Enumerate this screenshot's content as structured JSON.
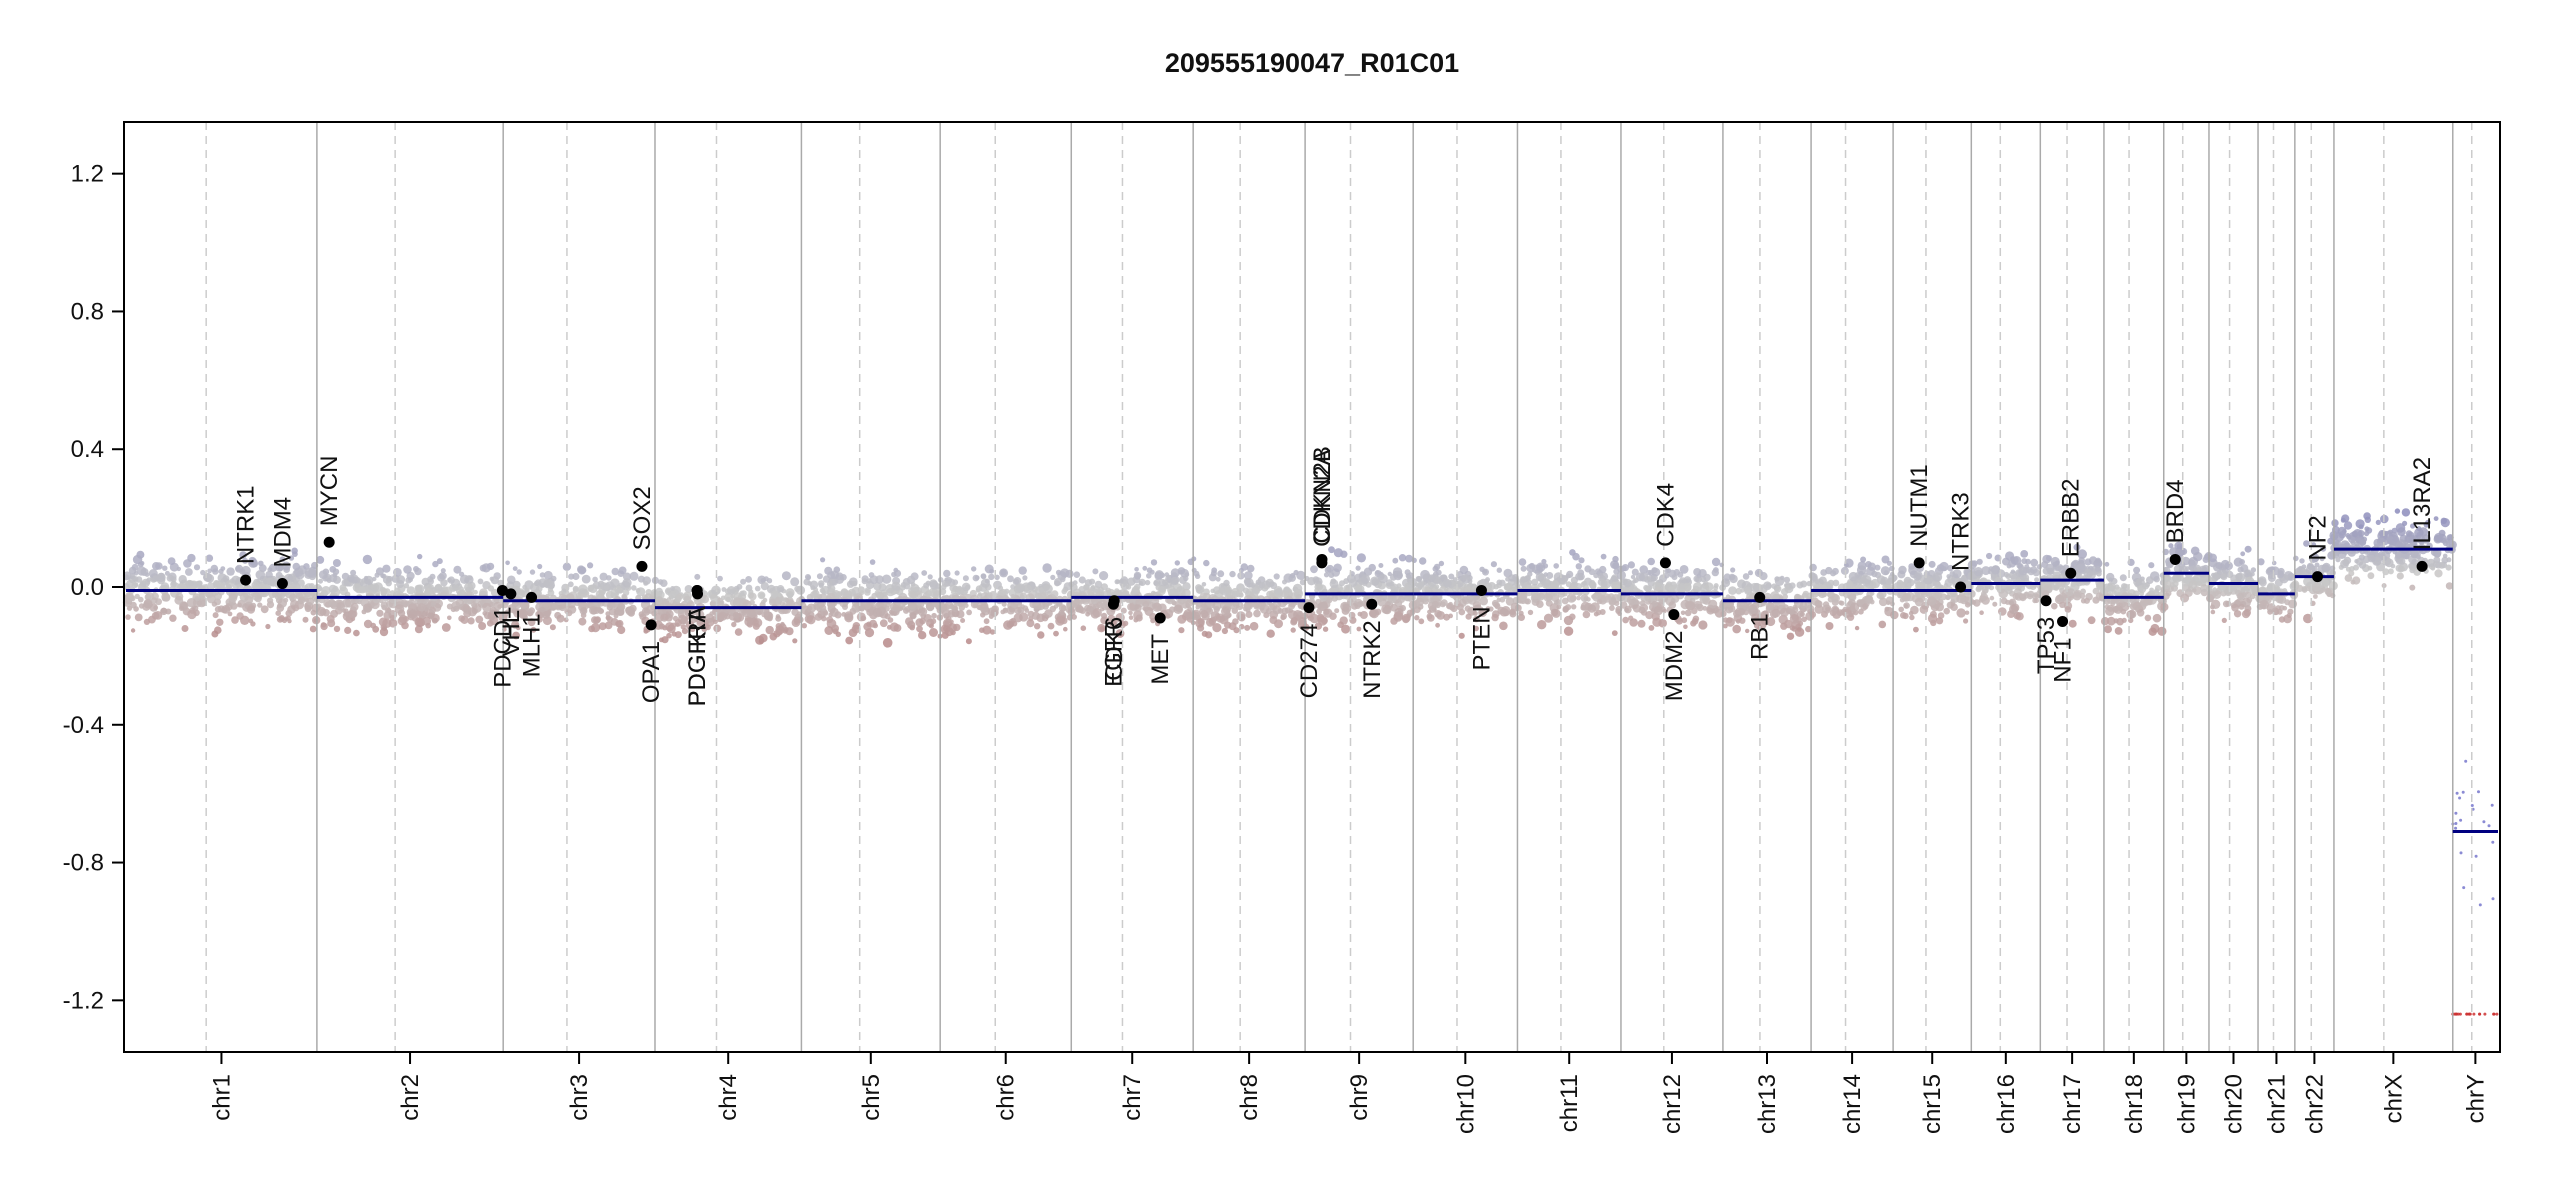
{
  "chart_data": {
    "type": "scatter",
    "title": "209555190047_R01C01",
    "xlabel": "",
    "ylabel": "",
    "ylim": [
      -1.35,
      1.35
    ],
    "y_ticks": [
      "1.2",
      "0.8",
      "0.4",
      "0.0",
      "-0.4",
      "-0.8",
      "-1.2"
    ],
    "y_tick_values": [
      1.2,
      0.8,
      0.4,
      0.0,
      -0.4,
      -0.8,
      -1.2
    ],
    "chromosomes": [
      {
        "name": "chr1",
        "length": 249
      },
      {
        "name": "chr2",
        "length": 243
      },
      {
        "name": "chr3",
        "length": 198
      },
      {
        "name": "chr4",
        "length": 191
      },
      {
        "name": "chr5",
        "length": 181
      },
      {
        "name": "chr6",
        "length": 171
      },
      {
        "name": "chr7",
        "length": 159
      },
      {
        "name": "chr8",
        "length": 146
      },
      {
        "name": "chr9",
        "length": 141
      },
      {
        "name": "chr10",
        "length": 136
      },
      {
        "name": "chr11",
        "length": 135
      },
      {
        "name": "chr12",
        "length": 133
      },
      {
        "name": "chr13",
        "length": 115
      },
      {
        "name": "chr14",
        "length": 107
      },
      {
        "name": "chr15",
        "length": 102
      },
      {
        "name": "chr16",
        "length": 90
      },
      {
        "name": "chr17",
        "length": 83
      },
      {
        "name": "chr18",
        "length": 78
      },
      {
        "name": "chr19",
        "length": 59
      },
      {
        "name": "chr20",
        "length": 64
      },
      {
        "name": "chr21",
        "length": 48
      },
      {
        "name": "chr22",
        "length": 51
      },
      {
        "name": "chrX",
        "length": 155
      },
      {
        "name": "chrY",
        "length": 59
      }
    ],
    "segments": [
      {
        "chr": "chr1",
        "start": 0,
        "end": 249,
        "value": -0.01
      },
      {
        "chr": "chr2",
        "start": 0,
        "end": 243,
        "value": -0.03
      },
      {
        "chr": "chr3",
        "start": 0,
        "end": 198,
        "value": -0.04
      },
      {
        "chr": "chr4",
        "start": 0,
        "end": 191,
        "value": -0.06
      },
      {
        "chr": "chr5",
        "start": 0,
        "end": 181,
        "value": -0.04
      },
      {
        "chr": "chr6",
        "start": 0,
        "end": 171,
        "value": -0.04
      },
      {
        "chr": "chr7",
        "start": 0,
        "end": 159,
        "value": -0.03
      },
      {
        "chr": "chr8",
        "start": 0,
        "end": 146,
        "value": -0.04
      },
      {
        "chr": "chr9",
        "start": 0,
        "end": 141,
        "value": -0.02
      },
      {
        "chr": "chr10",
        "start": 0,
        "end": 136,
        "value": -0.02
      },
      {
        "chr": "chr11",
        "start": 0,
        "end": 135,
        "value": -0.01
      },
      {
        "chr": "chr12",
        "start": 0,
        "end": 133,
        "value": -0.02
      },
      {
        "chr": "chr13",
        "start": 0,
        "end": 115,
        "value": -0.04
      },
      {
        "chr": "chr14",
        "start": 0,
        "end": 107,
        "value": -0.01
      },
      {
        "chr": "chr15",
        "start": 0,
        "end": 102,
        "value": -0.01
      },
      {
        "chr": "chr16",
        "start": 0,
        "end": 90,
        "value": 0.01
      },
      {
        "chr": "chr17",
        "start": 0,
        "end": 83,
        "value": 0.02
      },
      {
        "chr": "chr18",
        "start": 0,
        "end": 78,
        "value": -0.03
      },
      {
        "chr": "chr19",
        "start": 0,
        "end": 59,
        "value": 0.04
      },
      {
        "chr": "chr20",
        "start": 0,
        "end": 64,
        "value": 0.01
      },
      {
        "chr": "chr21",
        "start": 0,
        "end": 48,
        "value": -0.02
      },
      {
        "chr": "chr22",
        "start": 0,
        "end": 51,
        "value": 0.03
      },
      {
        "chr": "chrX",
        "start": 0,
        "end": 155,
        "value": 0.11
      },
      {
        "chr": "chrY",
        "start": 0,
        "end": 59,
        "value": -0.71
      }
    ],
    "genes": [
      {
        "name": "NTRK1",
        "chr": "chr1",
        "pos": 156,
        "value": 0.02,
        "label_side": "above"
      },
      {
        "name": "MDM4",
        "chr": "chr1",
        "pos": 204,
        "value": 0.01,
        "label_side": "above"
      },
      {
        "name": "MYCN",
        "chr": "chr2",
        "pos": 16,
        "value": 0.13,
        "label_side": "above"
      },
      {
        "name": "PDGFRA",
        "chr": "chr4",
        "pos": 55,
        "value": -0.01,
        "label_side": "below"
      },
      {
        "name": "PDCD1",
        "chr": "chr2",
        "pos": 242,
        "value": -0.01,
        "label_side": "below"
      },
      {
        "name": "VHL",
        "chr": "chr3",
        "pos": 10,
        "value": -0.02,
        "label_side": "below"
      },
      {
        "name": "MLH1",
        "chr": "chr3",
        "pos": 37,
        "value": -0.03,
        "label_side": "below"
      },
      {
        "name": "SOX2",
        "chr": "chr3",
        "pos": 181,
        "value": 0.06,
        "label_side": "above"
      },
      {
        "name": "OPA1",
        "chr": "chr3",
        "pos": 193,
        "value": -0.11,
        "label_side": "below"
      },
      {
        "name": "KIT",
        "chr": "chr4",
        "pos": 55.5,
        "value": -0.02,
        "label_side": "below"
      },
      {
        "name": "PDGFRA",
        "chr": "chr4",
        "pos": 55,
        "value": -0.01,
        "label_side": "below"
      },
      {
        "name": "EGFR",
        "chr": "chr7",
        "pos": 55,
        "value": -0.05,
        "label_side": "below"
      },
      {
        "name": "CDK6",
        "chr": "chr7",
        "pos": 56,
        "value": -0.04,
        "label_side": "below"
      },
      {
        "name": "MET",
        "chr": "chr7",
        "pos": 116,
        "value": -0.09,
        "label_side": "below"
      },
      {
        "name": "CD274",
        "chr": "chr9",
        "pos": 5,
        "value": -0.06,
        "label_side": "below"
      },
      {
        "name": "CDKN2A",
        "chr": "chr9",
        "pos": 21.9,
        "value": 0.07,
        "label_side": "above"
      },
      {
        "name": "CDKN2B",
        "chr": "chr9",
        "pos": 22,
        "value": 0.08,
        "label_side": "above"
      },
      {
        "name": "NTRK2",
        "chr": "chr9",
        "pos": 87,
        "value": -0.05,
        "label_side": "below"
      },
      {
        "name": "PTEN",
        "chr": "chr10",
        "pos": 89,
        "value": -0.01,
        "label_side": "below"
      },
      {
        "name": "CDK4",
        "chr": "chr12",
        "pos": 58,
        "value": 0.07,
        "label_side": "above"
      },
      {
        "name": "MDM2",
        "chr": "chr12",
        "pos": 69,
        "value": -0.08,
        "label_side": "below"
      },
      {
        "name": "RB1",
        "chr": "chr13",
        "pos": 48,
        "value": -0.03,
        "label_side": "below"
      },
      {
        "name": "NUTM1",
        "chr": "chr15",
        "pos": 34,
        "value": 0.07,
        "label_side": "above"
      },
      {
        "name": "NTRK3",
        "chr": "chr15",
        "pos": 88,
        "value": 0.0,
        "label_side": "above"
      },
      {
        "name": "TP53",
        "chr": "chr17",
        "pos": 7.5,
        "value": -0.04,
        "label_side": "below"
      },
      {
        "name": "NF1",
        "chr": "chr17",
        "pos": 29,
        "value": -0.1,
        "label_side": "below"
      },
      {
        "name": "ERBB2",
        "chr": "chr17",
        "pos": 39.7,
        "value": 0.04,
        "label_side": "above"
      },
      {
        "name": "BRD4",
        "chr": "chr19",
        "pos": 15,
        "value": 0.08,
        "label_side": "above"
      },
      {
        "name": "NF2",
        "chr": "chr22",
        "pos": 29.6,
        "value": 0.03,
        "label_side": "above"
      },
      {
        "name": "IL13RA2",
        "chrX": true,
        "chr": "chrX",
        "pos": 115,
        "value": 0.06,
        "label_side": "above"
      }
    ],
    "grid": "chromosome boundaries solid gray, centromeres dashed gray",
    "colors": {
      "positive": "#8888bb",
      "neutral": "#c8c8c8",
      "negative": "#b07070",
      "segment": "#000080",
      "gene_point": "#000000"
    }
  }
}
